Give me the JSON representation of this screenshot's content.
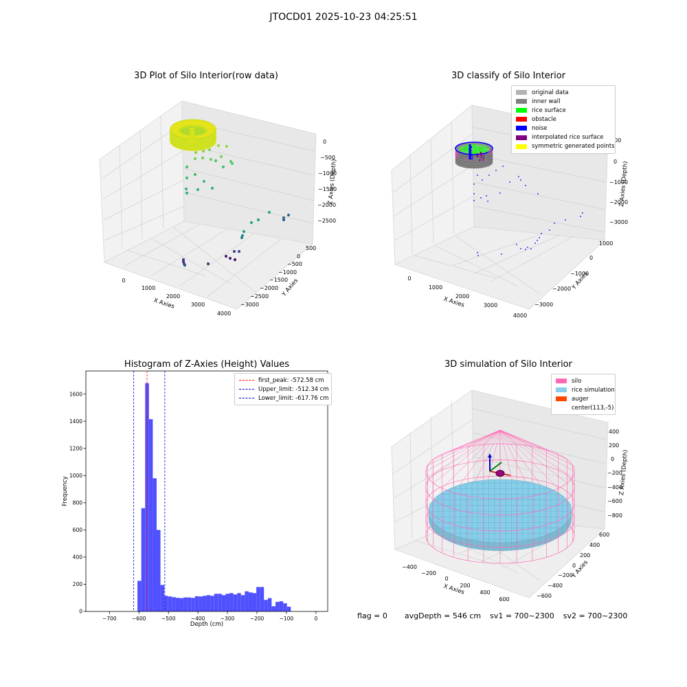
{
  "suptitle": "JTOCD01 2025-10-23 04:25:51",
  "status": {
    "flag": "flag = 0",
    "avg": "avgDepth = 546 cm",
    "sv1": "sv1 = 700~2300",
    "sv2": "sv2 = 700~2300"
  },
  "colors": {
    "hist_bar": "#5050ff",
    "peak_line": "#ff0000",
    "limit_line": "#0000cc",
    "original": "#b3b3b3",
    "inner_wall": "#808080",
    "rice_surface": "#00ff00",
    "obstacle": "#ff0000",
    "noise": "#0000ff",
    "interpolated": "#800080",
    "symmetric": "#ffff00",
    "silo": "#ff69b4",
    "rice_sim": "#87ceeb",
    "auger": "#ff4500"
  },
  "chart_data": [
    {
      "type": "scatter",
      "title": "3D Plot of Silo Interior(row data)",
      "xlabel": "X Axies",
      "ylabel": "Y Axies",
      "zlabel": "Z Axies (Depth)",
      "x_ticks": [
        "0",
        "1000",
        "2000",
        "3000",
        "4000"
      ],
      "y_ticks": [
        "500",
        "0",
        "−500",
        "−1000",
        "−1500",
        "−2000",
        "−2500",
        "−3000"
      ],
      "z_ticks": [
        "0",
        "−500",
        "−1000",
        "−1500",
        "−2000",
        "−2500"
      ],
      "colormap": "viridis"
    },
    {
      "type": "scatter",
      "title": "3D classify of Silo Interior",
      "xlabel": "X Axies",
      "ylabel": "Y Axies",
      "zlabel": "Z Axies (Depth)",
      "x_ticks": [
        "0",
        "1000",
        "2000",
        "3000",
        "4000"
      ],
      "y_ticks": [
        "1000",
        "0",
        "−1000",
        "−2000",
        "−3000"
      ],
      "z_ticks": [
        "1000",
        "0",
        "−1000",
        "−2000",
        "−3000"
      ],
      "legend": [
        {
          "label": "original data",
          "color": "#b3b3b3"
        },
        {
          "label": "inner wall",
          "color": "#808080"
        },
        {
          "label": "rice surface",
          "color": "#00ff00"
        },
        {
          "label": "obstacle",
          "color": "#ff0000"
        },
        {
          "label": "noise",
          "color": "#0000ff"
        },
        {
          "label": "interpolated rice surface",
          "color": "#800080"
        },
        {
          "label": "symmetric generated points",
          "color": "#ffff00"
        }
      ]
    },
    {
      "type": "bar",
      "title": "Histogram of Z-Axies (Height) Values",
      "xlabel": "Depth (cm)",
      "ylabel": "Frequency",
      "xlim": [
        -780,
        40
      ],
      "ylim": [
        0,
        1770
      ],
      "x_ticks": [
        -700,
        -600,
        -500,
        -400,
        -300,
        -200,
        -100,
        0
      ],
      "y_ticks": [
        0,
        200,
        400,
        600,
        800,
        1000,
        1200,
        1400,
        1600
      ],
      "bin_width": 12.9,
      "bins": [
        {
          "x": -605,
          "v": 225
        },
        {
          "x": -592,
          "v": 760
        },
        {
          "x": -579,
          "v": 1680
        },
        {
          "x": -566,
          "v": 1415
        },
        {
          "x": -553,
          "v": 980
        },
        {
          "x": -540,
          "v": 600
        },
        {
          "x": -527,
          "v": 195
        },
        {
          "x": -514,
          "v": 115
        },
        {
          "x": -501,
          "v": 110
        },
        {
          "x": -488,
          "v": 105
        },
        {
          "x": -475,
          "v": 100
        },
        {
          "x": -462,
          "v": 98
        },
        {
          "x": -449,
          "v": 103
        },
        {
          "x": -436,
          "v": 103
        },
        {
          "x": -423,
          "v": 100
        },
        {
          "x": -410,
          "v": 112
        },
        {
          "x": -397,
          "v": 110
        },
        {
          "x": -384,
          "v": 115
        },
        {
          "x": -371,
          "v": 120
        },
        {
          "x": -358,
          "v": 115
        },
        {
          "x": -345,
          "v": 130
        },
        {
          "x": -332,
          "v": 130
        },
        {
          "x": -319,
          "v": 120
        },
        {
          "x": -306,
          "v": 130
        },
        {
          "x": -293,
          "v": 135
        },
        {
          "x": -280,
          "v": 125
        },
        {
          "x": -267,
          "v": 135
        },
        {
          "x": -254,
          "v": 120
        },
        {
          "x": -241,
          "v": 148
        },
        {
          "x": -228,
          "v": 140
        },
        {
          "x": -215,
          "v": 135
        },
        {
          "x": -202,
          "v": 180
        },
        {
          "x": -189,
          "v": 180
        },
        {
          "x": -176,
          "v": 85
        },
        {
          "x": -163,
          "v": 98
        },
        {
          "x": -150,
          "v": 38
        },
        {
          "x": -137,
          "v": 70
        },
        {
          "x": -124,
          "v": 75
        },
        {
          "x": -111,
          "v": 60
        },
        {
          "x": -98,
          "v": 35
        }
      ],
      "vlines": [
        {
          "label": "first_peak: -572.58 cm",
          "x": -572.58,
          "color": "#ff0000"
        },
        {
          "label": "Upper_limit: -512.34 cm",
          "x": -512.34,
          "color": "#0000cc"
        },
        {
          "label": "Lower_limit: -617.76 cm",
          "x": -617.76,
          "color": "#0000cc"
        }
      ]
    },
    {
      "type": "scatter",
      "title": "3D simulation of Silo Interior",
      "xlabel": "X Axies",
      "ylabel": "Y Axies",
      "zlabel": "Z Axies (Depth)",
      "x_ticks": [
        "−400",
        "−200",
        "0",
        "200",
        "400",
        "600"
      ],
      "y_ticks": [
        "600",
        "400",
        "200",
        "0",
        "−200",
        "−400",
        "−600"
      ],
      "z_ticks": [
        "400",
        "200",
        "0",
        "−200",
        "−400",
        "−600",
        "−800"
      ],
      "legend": [
        {
          "label": "silo",
          "color": "#ff69b4"
        },
        {
          "label": "rice simulation",
          "color": "#87ceeb"
        },
        {
          "label": "auger",
          "color": "#ff4500"
        },
        {
          "label": "center(113,-5)",
          "color": "#ffffff"
        }
      ]
    }
  ]
}
